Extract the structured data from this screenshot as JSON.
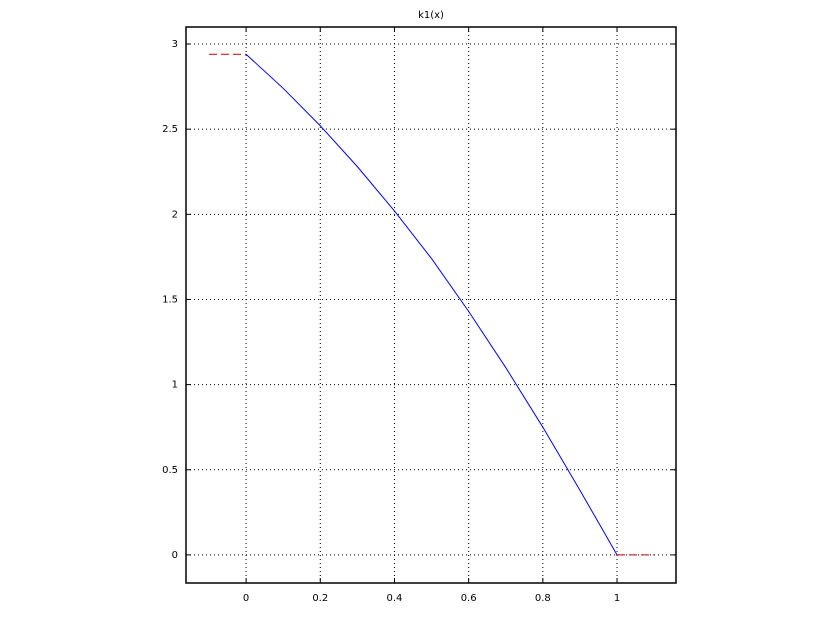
{
  "chart_data": {
    "type": "line",
    "title": "k1(x)",
    "xlim": [
      -0.162,
      1.159
    ],
    "ylim": [
      -0.165,
      3.1
    ],
    "xticks": [
      0,
      0.2,
      0.4,
      0.6,
      0.8,
      1
    ],
    "yticks": [
      0,
      0.5,
      1,
      1.5,
      2,
      2.5,
      3
    ],
    "grid": true,
    "series": [
      {
        "color": "#cc0000",
        "dashed": true,
        "x": [
          -0.1,
          0
        ],
        "values": [
          2.94,
          2.94
        ]
      },
      {
        "color": "#0000ff",
        "dashed": false,
        "x": [
          0,
          0.1,
          0.2,
          0.3,
          0.4,
          0.5,
          0.6,
          0.7,
          0.8,
          0.9,
          1
        ],
        "values": [
          2.94,
          2.74,
          2.52,
          2.28,
          2.02,
          1.74,
          1.43,
          1.1,
          0.75,
          0.38,
          0
        ]
      },
      {
        "color": "#cc0000",
        "dashed": true,
        "x": [
          1,
          1.1
        ],
        "values": [
          0,
          0
        ]
      }
    ]
  }
}
